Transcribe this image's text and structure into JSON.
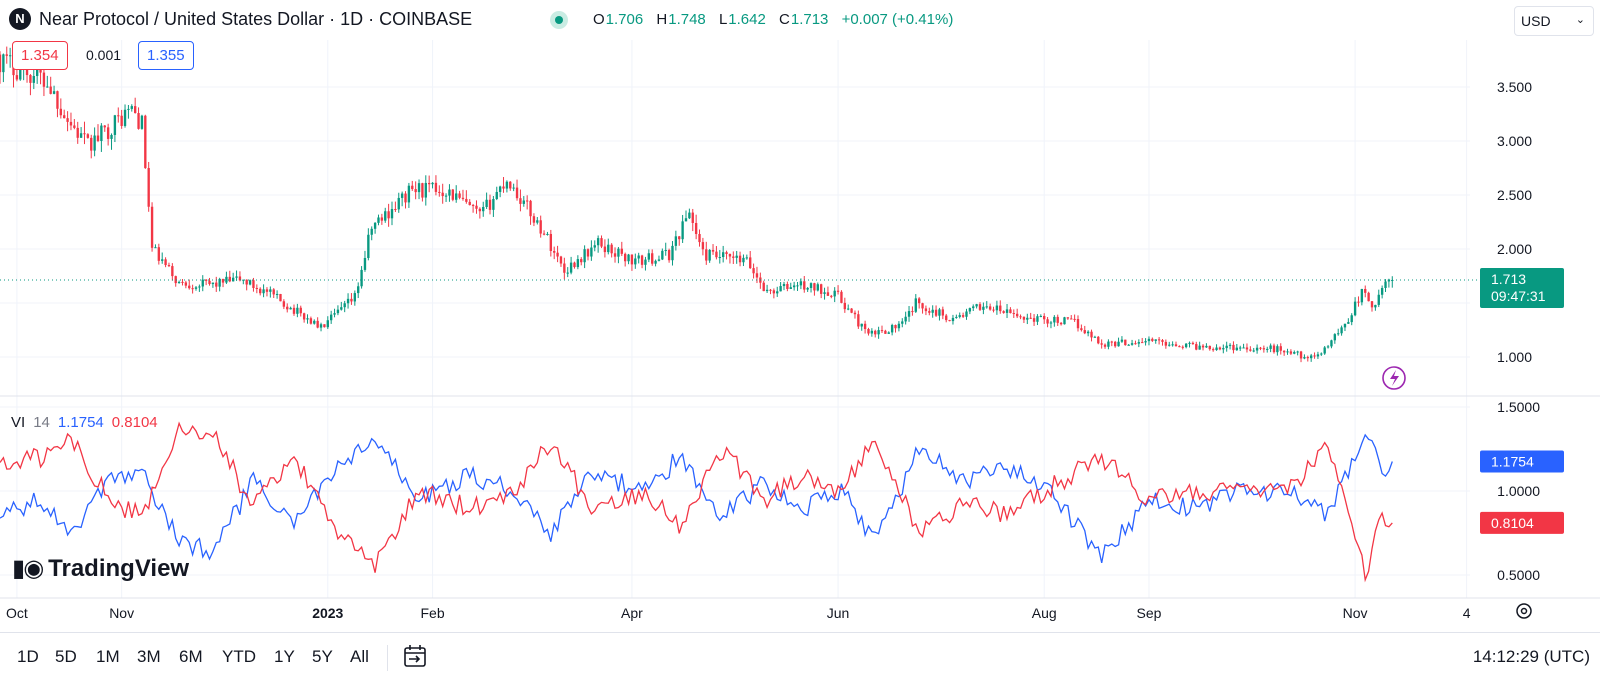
{
  "header": {
    "logo_text": "N",
    "title": "Near Protocol / United States Dollar · 1D · COINBASE",
    "ohlc": {
      "o_label": "O",
      "o": "1.706",
      "h_label": "H",
      "h": "1.748",
      "l_label": "L",
      "l": "1.642",
      "c_label": "C",
      "c": "1.713",
      "change": "+0.007 (+0.41%)"
    },
    "currency": "USD"
  },
  "range_badges": {
    "low": "1.354",
    "diff": "0.001",
    "high": "1.355"
  },
  "indicator": {
    "name": "VI",
    "period": "14",
    "vi_plus": "1.1754",
    "vi_minus": "0.8104"
  },
  "watermark": "TradingView",
  "toolbar": {
    "ranges": [
      "1D",
      "5D",
      "1M",
      "3M",
      "6M",
      "YTD",
      "1Y",
      "5Y",
      "All"
    ],
    "clock": "14:12:29 (UTC)"
  },
  "colors": {
    "up": "#089981",
    "down": "#f23645",
    "vi_plus": "#2962ff",
    "vi_minus": "#f23645"
  },
  "chart_data": [
    {
      "type": "candlestick",
      "title": "Near Protocol / United States Dollar · 1D · COINBASE",
      "y_ticks": [
        "3.500",
        "3.000",
        "2.500",
        "2.000",
        "1.000"
      ],
      "ylim": [
        0.7,
        4.0
      ],
      "x_ticks": [
        "Oct",
        "Nov",
        "2023",
        "Feb",
        "Apr",
        "Jun",
        "Aug",
        "Sep",
        "Nov",
        "4"
      ],
      "last_price": "1.713",
      "countdown": "09:47:31",
      "close_anchors": [
        {
          "date": "2022-09-26",
          "close": 3.75
        },
        {
          "date": "2022-10-10",
          "close": 3.55
        },
        {
          "date": "2022-10-16",
          "close": 3.2
        },
        {
          "date": "2022-10-22",
          "close": 2.95
        },
        {
          "date": "2022-11-04",
          "close": 3.3
        },
        {
          "date": "2022-11-07",
          "close": 3.15
        },
        {
          "date": "2022-11-10",
          "close": 2.0
        },
        {
          "date": "2022-11-18",
          "close": 1.68
        },
        {
          "date": "2022-11-27",
          "close": 1.67
        },
        {
          "date": "2022-12-06",
          "close": 1.72
        },
        {
          "date": "2022-12-15",
          "close": 1.58
        },
        {
          "date": "2022-12-30",
          "close": 1.27
        },
        {
          "date": "2023-01-09",
          "close": 1.55
        },
        {
          "date": "2023-01-14",
          "close": 2.2
        },
        {
          "date": "2023-01-26",
          "close": 2.55
        },
        {
          "date": "2023-02-05",
          "close": 2.55
        },
        {
          "date": "2023-02-15",
          "close": 2.3
        },
        {
          "date": "2023-02-23",
          "close": 2.65
        },
        {
          "date": "2023-03-06",
          "close": 2.15
        },
        {
          "date": "2023-03-12",
          "close": 1.8
        },
        {
          "date": "2023-03-22",
          "close": 2.05
        },
        {
          "date": "2023-04-02",
          "close": 1.88
        },
        {
          "date": "2023-04-12",
          "close": 1.95
        },
        {
          "date": "2023-04-18",
          "close": 2.35
        },
        {
          "date": "2023-04-22",
          "close": 1.95
        },
        {
          "date": "2023-05-05",
          "close": 1.88
        },
        {
          "date": "2023-05-11",
          "close": 1.6
        },
        {
          "date": "2023-05-20",
          "close": 1.67
        },
        {
          "date": "2023-05-31",
          "close": 1.6
        },
        {
          "date": "2023-06-10",
          "close": 1.2
        },
        {
          "date": "2023-06-20",
          "close": 1.3
        },
        {
          "date": "2023-06-24",
          "close": 1.5
        },
        {
          "date": "2023-07-05",
          "close": 1.35
        },
        {
          "date": "2023-07-14",
          "close": 1.48
        },
        {
          "date": "2023-07-25",
          "close": 1.37
        },
        {
          "date": "2023-08-10",
          "close": 1.32
        },
        {
          "date": "2023-08-18",
          "close": 1.12
        },
        {
          "date": "2023-09-01",
          "close": 1.15
        },
        {
          "date": "2023-09-15",
          "close": 1.1
        },
        {
          "date": "2023-09-28",
          "close": 1.09
        },
        {
          "date": "2023-10-10",
          "close": 1.07
        },
        {
          "date": "2023-10-20",
          "close": 0.98
        },
        {
          "date": "2023-10-29",
          "close": 1.3
        },
        {
          "date": "2023-11-03",
          "close": 1.6
        },
        {
          "date": "2023-11-07",
          "close": 1.45
        },
        {
          "date": "2023-11-10",
          "close": 1.7
        },
        {
          "date": "2023-11-12",
          "close": 1.713
        }
      ]
    },
    {
      "type": "line",
      "title": "VI 14",
      "y_ticks": [
        "1.5000",
        "1.0000",
        "0.5000"
      ],
      "ylim": [
        0.4,
        1.55
      ],
      "current_values": [
        "1.1754",
        "0.8104"
      ],
      "series": [
        {
          "name": "VI+",
          "color": "#2962ff",
          "anchors": [
            {
              "date": "2022-09-26",
              "v": 0.85
            },
            {
              "date": "2022-10-08",
              "v": 0.95
            },
            {
              "date": "2022-10-18",
              "v": 0.75
            },
            {
              "date": "2022-10-28",
              "v": 1.05
            },
            {
              "date": "2022-11-07",
              "v": 1.1
            },
            {
              "date": "2022-11-18",
              "v": 0.7
            },
            {
              "date": "2022-11-28",
              "v": 0.65
            },
            {
              "date": "2022-12-10",
              "v": 1.05
            },
            {
              "date": "2022-12-22",
              "v": 0.8
            },
            {
              "date": "2023-01-02",
              "v": 1.1
            },
            {
              "date": "2023-01-15",
              "v": 1.3
            },
            {
              "date": "2023-01-28",
              "v": 0.95
            },
            {
              "date": "2023-02-12",
              "v": 1.1
            },
            {
              "date": "2023-02-25",
              "v": 1.0
            },
            {
              "date": "2023-03-08",
              "v": 0.75
            },
            {
              "date": "2023-03-20",
              "v": 1.1
            },
            {
              "date": "2023-04-05",
              "v": 1.0
            },
            {
              "date": "2023-04-15",
              "v": 1.2
            },
            {
              "date": "2023-04-28",
              "v": 0.85
            },
            {
              "date": "2023-05-10",
              "v": 1.05
            },
            {
              "date": "2023-05-22",
              "v": 0.9
            },
            {
              "date": "2023-06-02",
              "v": 1.0
            },
            {
              "date": "2023-06-12",
              "v": 0.7
            },
            {
              "date": "2023-06-25",
              "v": 1.25
            },
            {
              "date": "2023-07-10",
              "v": 1.05
            },
            {
              "date": "2023-07-20",
              "v": 1.15
            },
            {
              "date": "2023-08-05",
              "v": 0.95
            },
            {
              "date": "2023-08-18",
              "v": 0.6
            },
            {
              "date": "2023-09-01",
              "v": 0.95
            },
            {
              "date": "2023-09-15",
              "v": 0.9
            },
            {
              "date": "2023-09-28",
              "v": 1.0
            },
            {
              "date": "2023-10-12",
              "v": 1.0
            },
            {
              "date": "2023-10-24",
              "v": 0.85
            },
            {
              "date": "2023-11-04",
              "v": 1.35
            },
            {
              "date": "2023-11-09",
              "v": 1.1
            },
            {
              "date": "2023-11-12",
              "v": 1.1754
            }
          ]
        },
        {
          "name": "VI-",
          "color": "#f23645",
          "anchors": [
            {
              "date": "2022-09-26",
              "v": 1.15
            },
            {
              "date": "2022-10-08",
              "v": 1.2
            },
            {
              "date": "2022-10-18",
              "v": 1.3
            },
            {
              "date": "2022-10-28",
              "v": 0.95
            },
            {
              "date": "2022-11-07",
              "v": 0.85
            },
            {
              "date": "2022-11-18",
              "v": 1.35
            },
            {
              "date": "2022-11-28",
              "v": 1.35
            },
            {
              "date": "2022-12-10",
              "v": 0.9
            },
            {
              "date": "2022-12-22",
              "v": 1.2
            },
            {
              "date": "2023-01-02",
              "v": 0.8
            },
            {
              "date": "2023-01-15",
              "v": 0.55
            },
            {
              "date": "2023-01-28",
              "v": 1.0
            },
            {
              "date": "2023-02-12",
              "v": 0.9
            },
            {
              "date": "2023-02-25",
              "v": 1.0
            },
            {
              "date": "2023-03-08",
              "v": 1.3
            },
            {
              "date": "2023-03-20",
              "v": 0.9
            },
            {
              "date": "2023-04-05",
              "v": 1.0
            },
            {
              "date": "2023-04-15",
              "v": 0.8
            },
            {
              "date": "2023-04-28",
              "v": 1.25
            },
            {
              "date": "2023-05-10",
              "v": 0.95
            },
            {
              "date": "2023-05-22",
              "v": 1.1
            },
            {
              "date": "2023-06-02",
              "v": 1.0
            },
            {
              "date": "2023-06-12",
              "v": 1.3
            },
            {
              "date": "2023-06-25",
              "v": 0.75
            },
            {
              "date": "2023-07-10",
              "v": 0.95
            },
            {
              "date": "2023-07-20",
              "v": 0.85
            },
            {
              "date": "2023-08-05",
              "v": 1.05
            },
            {
              "date": "2023-08-18",
              "v": 1.2
            },
            {
              "date": "2023-09-01",
              "v": 0.95
            },
            {
              "date": "2023-09-15",
              "v": 1.0
            },
            {
              "date": "2023-09-28",
              "v": 1.0
            },
            {
              "date": "2023-10-12",
              "v": 1.0
            },
            {
              "date": "2023-10-24",
              "v": 1.25
            },
            {
              "date": "2023-11-04",
              "v": 0.5
            },
            {
              "date": "2023-11-09",
              "v": 0.85
            },
            {
              "date": "2023-11-12",
              "v": 0.8104
            }
          ]
        }
      ]
    }
  ]
}
